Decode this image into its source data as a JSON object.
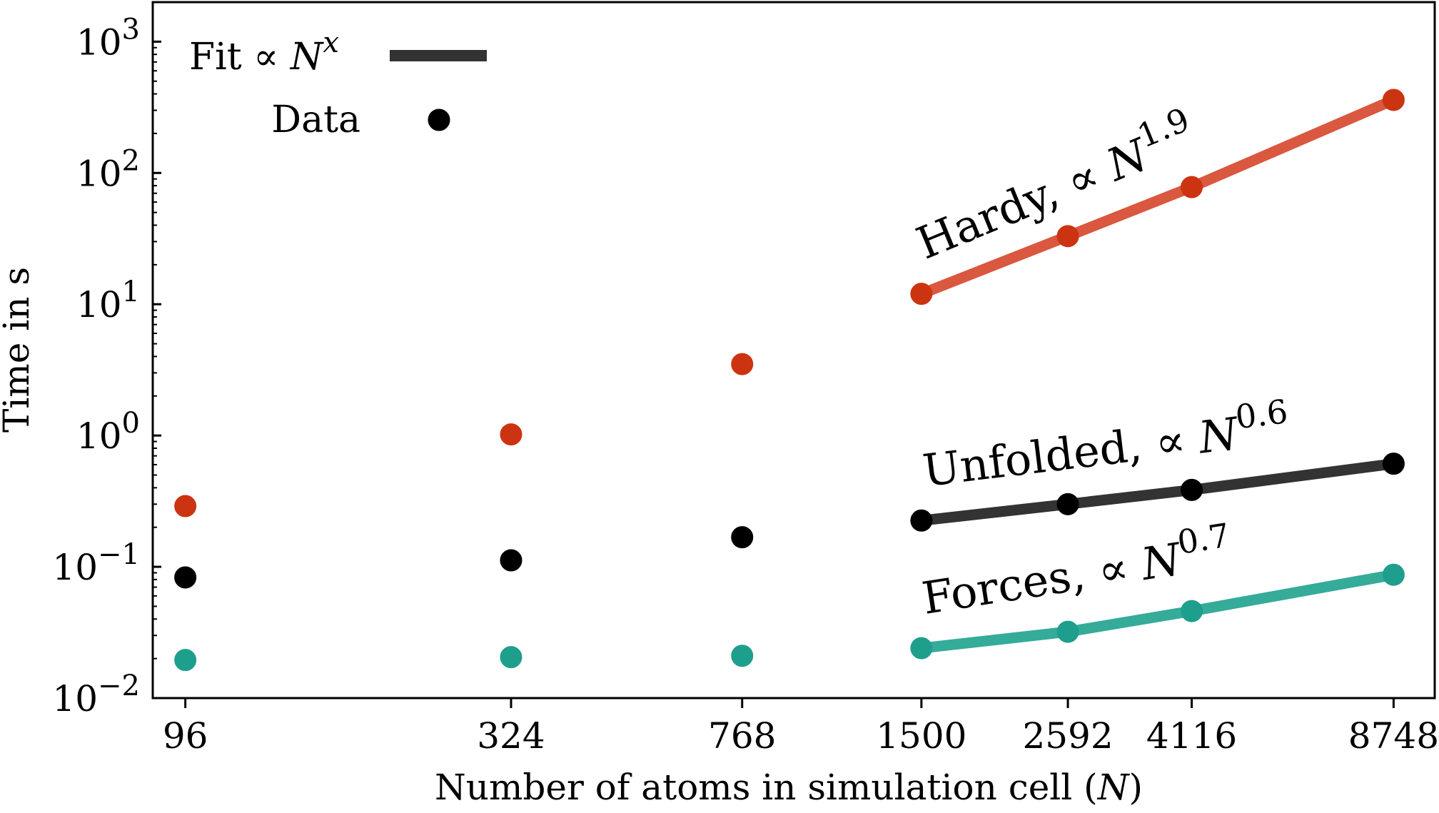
{
  "chart_data": {
    "type": "scatter",
    "xlabel_text": "Number of atoms in simulation cell (",
    "xlabel_var": "N",
    "xlabel_close": ")",
    "ylabel": "Time in s",
    "xscale": "log",
    "yscale": "log",
    "xlim": [
      85,
      10200
    ],
    "ylim": [
      0.01,
      2000
    ],
    "x_ticks": [
      96,
      324,
      768,
      1500,
      2592,
      4116,
      8748
    ],
    "y_ticks": [
      {
        "value": 0.01,
        "base": "10",
        "exp": "−2"
      },
      {
        "value": 0.1,
        "base": "10",
        "exp": "−1"
      },
      {
        "value": 1,
        "base": "10",
        "exp": "0"
      },
      {
        "value": 10,
        "base": "10",
        "exp": "1"
      },
      {
        "value": 100,
        "base": "10",
        "exp": "2"
      },
      {
        "value": 1000,
        "base": "10",
        "exp": "3"
      }
    ],
    "legend": {
      "placement": "top-left",
      "fit_label": "Fit ∝ ",
      "fit_var": "N",
      "fit_exp": "x",
      "data_label": "Data"
    },
    "series": [
      {
        "label_text": "Hardy, ∝ ",
        "label_var": "N",
        "label_exp": "1.9",
        "color": "#cc3311",
        "fit_color": "#d9583f",
        "x": [
          96,
          324,
          768,
          1500,
          2592,
          4116,
          8748
        ],
        "y": [
          0.29,
          1.02,
          3.5,
          12,
          33,
          78,
          360
        ]
      },
      {
        "label_text": "Unfolded, ∝ ",
        "label_var": "N",
        "label_exp": "0.6",
        "color": "#000000",
        "fit_color": "#333333",
        "x": [
          96,
          324,
          768,
          1500,
          2592,
          4116,
          8748
        ],
        "y": [
          0.083,
          0.112,
          0.168,
          0.225,
          0.3,
          0.385,
          0.61
        ]
      },
      {
        "label_text": "Forces, ∝ ",
        "label_var": "N",
        "label_exp": "0.7",
        "color": "#1e9e8c",
        "fit_color": "#35ab9a",
        "x": [
          96,
          324,
          768,
          1500,
          2592,
          4116,
          8748
        ],
        "y": [
          0.0195,
          0.0205,
          0.021,
          0.024,
          0.032,
          0.046,
          0.087
        ]
      }
    ],
    "fit_start_x": 1500
  }
}
